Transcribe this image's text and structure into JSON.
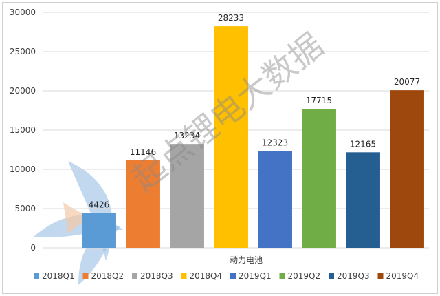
{
  "chart_data": {
    "type": "bar",
    "categories": [
      "动力电池"
    ],
    "series": [
      {
        "name": "2018Q1",
        "value": 4426,
        "color": "#5B9BD5"
      },
      {
        "name": "2018Q2",
        "value": 11146,
        "color": "#ED7D31"
      },
      {
        "name": "2018Q3",
        "value": 13234,
        "color": "#A5A5A5"
      },
      {
        "name": "2018Q4",
        "value": 28233,
        "color": "#FFC000"
      },
      {
        "name": "2019Q1",
        "value": 12323,
        "color": "#4472C4"
      },
      {
        "name": "2019Q2",
        "value": 17715,
        "color": "#70AD47"
      },
      {
        "name": "2019Q3",
        "value": 12165,
        "color": "#255E91"
      },
      {
        "name": "2019Q4",
        "value": 20077,
        "color": "#9E480E"
      }
    ],
    "ylim": [
      0,
      30000
    ],
    "yticks": [
      0,
      5000,
      10000,
      15000,
      20000,
      25000,
      30000
    ],
    "grid": true,
    "legend": "bottom"
  },
  "watermark": {
    "text": "起点锂电大数据"
  }
}
